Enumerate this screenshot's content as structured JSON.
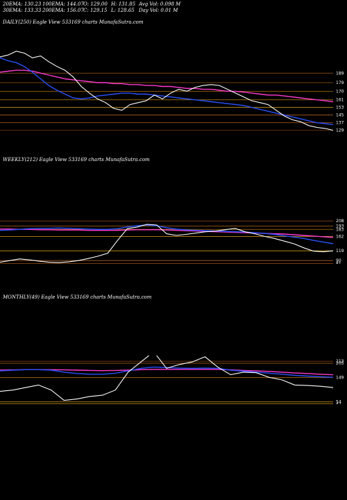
{
  "header": {
    "ema20": "20EMA: 130.23",
    "ema100": "100EMA: 144.07",
    "open": "O: 129.00",
    "high": "H: 131.85",
    "avgvol": "Avg Vol: 0.098  M",
    "ema30": "30EMA: 133.33",
    "ema200": "200EMA: 156.07",
    "close": "C: 129.15",
    "low": "L: 128.65",
    "dayvol": "Day Vol: 0.01  M"
  },
  "chart_data": [
    {
      "type": "line",
      "title": "DAILY(250) Eagle  View  533169 charts MunafaSutra.com",
      "ylim": [
        120,
        222
      ],
      "levels": [
        "189",
        "179",
        "170",
        "161",
        "153",
        "145",
        "137",
        "129"
      ],
      "level_values": [
        189,
        179,
        170,
        161,
        153,
        145,
        137,
        129
      ],
      "series": [
        {
          "name": "price",
          "color": "#ffffff",
          "values": [
            206,
            208,
            212,
            210,
            205,
            207,
            201,
            196,
            192,
            185,
            175,
            168,
            162,
            158,
            152,
            150,
            156,
            158,
            160,
            166,
            162,
            168,
            172,
            170,
            174,
            176,
            177,
            176,
            172,
            168,
            164,
            160,
            158,
            156,
            150,
            144,
            140,
            138,
            134,
            132,
            131,
            129
          ]
        },
        {
          "name": "ema-blue",
          "color": "#2a52ff",
          "values": [
            205,
            202,
            200,
            196,
            190,
            183,
            176,
            171,
            167,
            163,
            162,
            163,
            165,
            166,
            167,
            168,
            168,
            167,
            167,
            166,
            165,
            164,
            163,
            162,
            161,
            160,
            159,
            158,
            157,
            156,
            155,
            153,
            151,
            149,
            147,
            145,
            143,
            141,
            139,
            137,
            136,
            135
          ]
        },
        {
          "name": "ema-pink",
          "color": "#ff3ad2",
          "values": [
            190,
            191,
            192,
            192,
            191,
            189,
            187,
            185,
            183,
            182,
            181,
            180,
            179,
            179,
            178,
            178,
            177,
            177,
            176,
            176,
            175,
            175,
            174,
            173,
            173,
            172,
            172,
            171,
            170,
            170,
            169,
            168,
            167,
            166,
            166,
            165,
            164,
            163,
            162,
            161,
            160,
            159
          ]
        }
      ]
    },
    {
      "type": "line",
      "title": "WEEKLY(212) Eagle  View  533169 charts MunafaSutra.com",
      "ylim": [
        80,
        225
      ],
      "levels": [
        "208",
        "193",
        "183",
        "162",
        "119",
        "90",
        "81"
      ],
      "level_values": [
        208,
        193,
        183,
        162,
        119,
        90,
        81
      ],
      "series": [
        {
          "name": "price",
          "color": "#ffffff",
          "values": [
            85,
            90,
            95,
            92,
            88,
            85,
            84,
            86,
            90,
            96,
            103,
            112,
            150,
            185,
            190,
            198,
            196,
            170,
            165,
            168,
            172,
            176,
            178,
            182,
            186,
            176,
            170,
            162,
            156,
            148,
            140,
            128,
            118,
            116,
            119
          ]
        },
        {
          "name": "ema-blue",
          "color": "#2a52ff",
          "values": [
            180,
            181,
            183,
            185,
            186,
            186,
            187,
            186,
            185,
            184,
            183,
            183,
            185,
            190,
            194,
            196,
            194,
            188,
            184,
            181,
            180,
            179,
            178,
            177,
            176,
            175,
            173,
            171,
            168,
            164,
            160,
            156,
            150,
            145,
            140
          ]
        },
        {
          "name": "ema-pink",
          "color": "#ff3ad2",
          "values": [
            184,
            184,
            183,
            183,
            182,
            182,
            181,
            181,
            181,
            180,
            180,
            180,
            180,
            181,
            182,
            182,
            182,
            181,
            180,
            179,
            178,
            177,
            176,
            175,
            174,
            173,
            172,
            171,
            170,
            169,
            167,
            165,
            163,
            161,
            159
          ]
        }
      ]
    },
    {
      "type": "line",
      "title": "MONTHLY(49) Eagle  View  533169 charts MunafaSutra.com",
      "ylim": [
        45,
        235
      ],
      "levels": [
        "213",
        "205",
        "149",
        "54",
        "47"
      ],
      "level_values": [
        213,
        205,
        149,
        54,
        47
      ],
      "series": [
        {
          "name": "price",
          "color": "#ffffff",
          "values": [
            95,
            100,
            110,
            120,
            100,
            60,
            65,
            75,
            80,
            100,
            170,
            210,
            250,
            185,
            200,
            210,
            230,
            190,
            160,
            170,
            168,
            150,
            140,
            120,
            118,
            115,
            110
          ]
        },
        {
          "name": "ema-blue",
          "color": "#2a52ff",
          "values": [
            175,
            178,
            180,
            180,
            178,
            170,
            165,
            162,
            162,
            166,
            175,
            185,
            190,
            188,
            186,
            185,
            186,
            185,
            178,
            174,
            170,
            166,
            162,
            158,
            155,
            152,
            150
          ]
        },
        {
          "name": "ema-pink",
          "color": "#ff3ad2",
          "values": [
            178,
            179,
            180,
            180,
            180,
            179,
            178,
            177,
            176,
            177,
            178,
            180,
            181,
            181,
            181,
            181,
            181,
            181,
            179,
            177,
            175,
            173,
            170,
            167,
            165,
            162,
            160
          ]
        }
      ]
    }
  ]
}
